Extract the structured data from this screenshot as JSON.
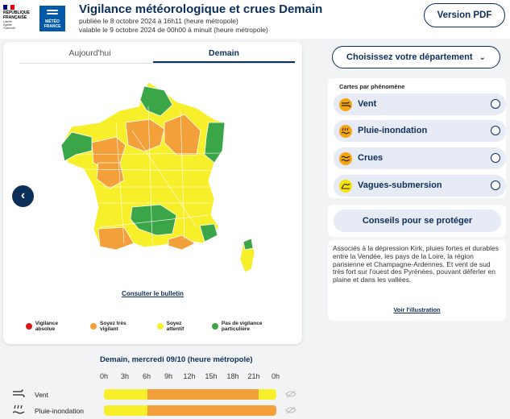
{
  "header": {
    "rf_flag_colors": [
      "#000091",
      "#ffffff",
      "#e1000f"
    ],
    "rf_line1": "RÉPUBLIQUE",
    "rf_line2": "FRANÇAISE",
    "rf_motto1": "Liberté",
    "rf_motto2": "Égalité",
    "rf_motto3": "Fraternité",
    "mf_line1": "MÉTÉO",
    "mf_line2": "FRANCE",
    "title": "Vigilance météorologique et crues Demain",
    "published": "publiée le 8 octobre 2024 à 16h11 (heure métropole)",
    "valid": "valable le 9 octobre 2024 de 00h00 à minuit (heure métropole)",
    "pdf_button": "Version PDF"
  },
  "map_panel": {
    "tabs": [
      "Aujourd'hui",
      "Demain"
    ],
    "active_tab": "Demain",
    "bulletin_link": "Consulter le bulletin",
    "legend": [
      {
        "label": "Vigilance absolue",
        "color": "#d7191c"
      },
      {
        "label": "Soyez très vigilant",
        "color": "#f4a03a"
      },
      {
        "label": "Soyez attentif",
        "color": "#f7ef2a"
      },
      {
        "label": "Pas de vigilance particulière",
        "color": "#3aa647"
      }
    ]
  },
  "sidebar": {
    "choose_department": "Choisissez votre département",
    "phenomena_title": "Cartes par phénomène",
    "phenomena": [
      {
        "label": "Vent",
        "icon": "wind-icon",
        "color": "#f4a40c"
      },
      {
        "label": "Pluie-inondation",
        "icon": "rain-flood-icon",
        "color": "#f4a40c"
      },
      {
        "label": "Crues",
        "icon": "flood-icon",
        "color": "#f4a40c"
      },
      {
        "label": "Vagues-submersion",
        "icon": "waves-icon",
        "color": "#f7e200"
      }
    ],
    "advice_button": "Conseils pour se protéger",
    "description": "Associés à la dépression Kirk, pluies fortes et durables entre la Vendée, les pays de la Loire, la région parisienne et Champagne-Ardennes. Et vent de sud très fort sur l'ouest des Pyrénées, pouvant déferler en plaine et dans les vallées.",
    "illustration_link": "Voir l'illustration"
  },
  "timeline": {
    "title": "Demain, mercredi 09/10 (heure métropole)",
    "hours": [
      "0h",
      "3h",
      "6h",
      "9h",
      "12h",
      "15h",
      "18h",
      "21h",
      "0h"
    ],
    "rows": [
      {
        "label": "Vent",
        "icon": "wind-icon",
        "segments": [
          {
            "from": 0,
            "to": 6,
            "level": "jaune"
          },
          {
            "from": 6,
            "to": 21.5,
            "level": "orange"
          },
          {
            "from": 21.5,
            "to": 24,
            "level": "jaune"
          }
        ]
      },
      {
        "label": "Pluie-inondation",
        "icon": "rain-flood-icon",
        "segments": [
          {
            "from": 0,
            "to": 6,
            "level": "jaune"
          },
          {
            "from": 6,
            "to": 24,
            "level": "orange"
          }
        ]
      }
    ],
    "level_colors": {
      "jaune": "#f7ef2a",
      "orange": "#f4a03a"
    }
  }
}
